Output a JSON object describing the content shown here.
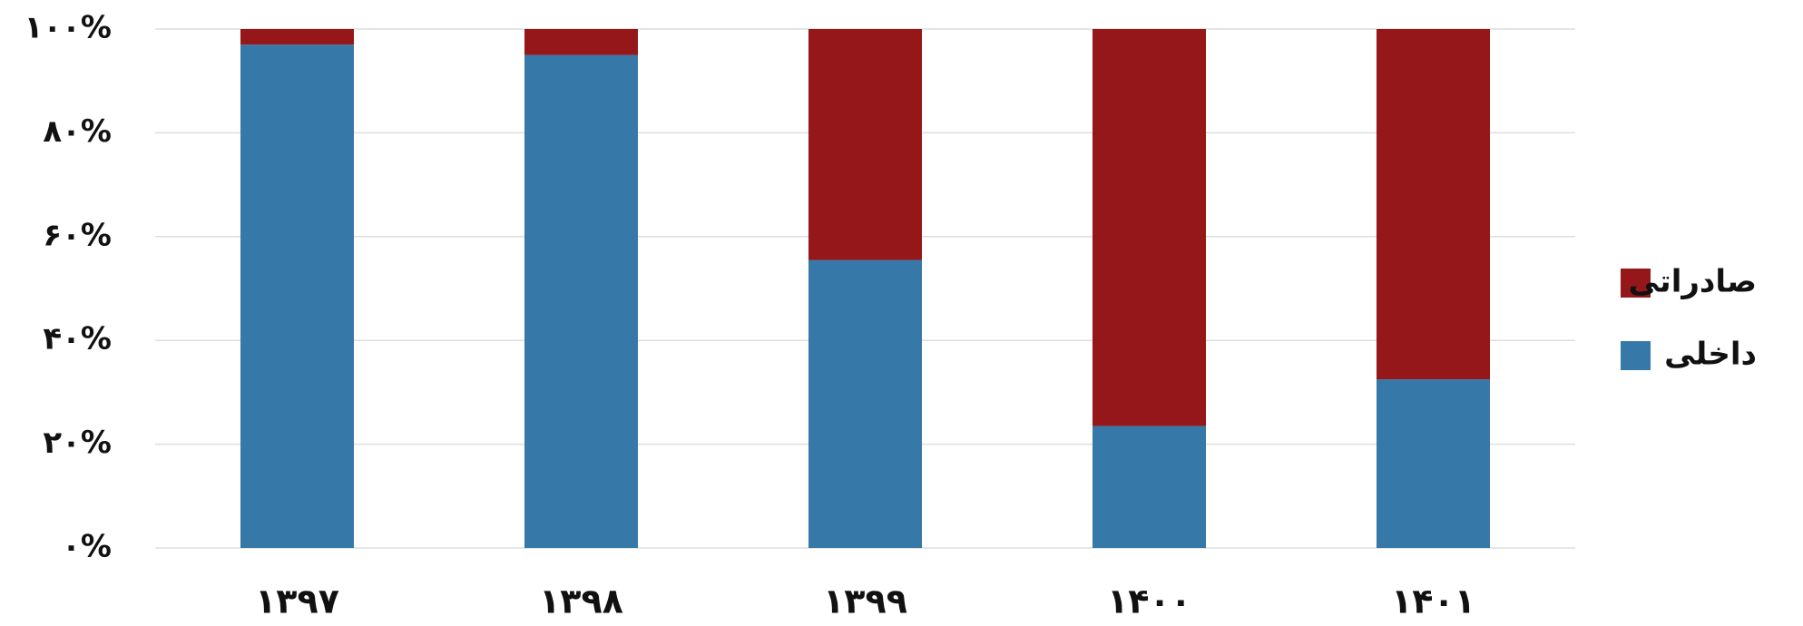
{
  "chart_data": {
    "type": "stacked_bar",
    "categories": [
      "۱۳۹۷",
      "۱۳۹۸",
      "۱۳۹۹",
      "۱۴۰۰",
      "۱۴۰۱"
    ],
    "series": [
      {
        "name": "داخلی",
        "color": "#3679a8",
        "values": [
          97,
          95,
          55.5,
          23.5,
          32.5
        ]
      },
      {
        "name": "صادراتی",
        "color": "#96171a",
        "values": [
          3,
          5,
          44.5,
          76.5,
          67.5
        ]
      }
    ],
    "ylim": [
      0,
      100
    ],
    "yticks": [
      {
        "value": 0,
        "label": "۰%"
      },
      {
        "value": 20,
        "label": "۲۰%"
      },
      {
        "value": 40,
        "label": "۴۰%"
      },
      {
        "value": 60,
        "label": "۶۰%"
      },
      {
        "value": 80,
        "label": "۸۰%"
      },
      {
        "value": 100,
        "label": "۱۰۰%"
      }
    ],
    "grid": true,
    "legend": "right"
  }
}
